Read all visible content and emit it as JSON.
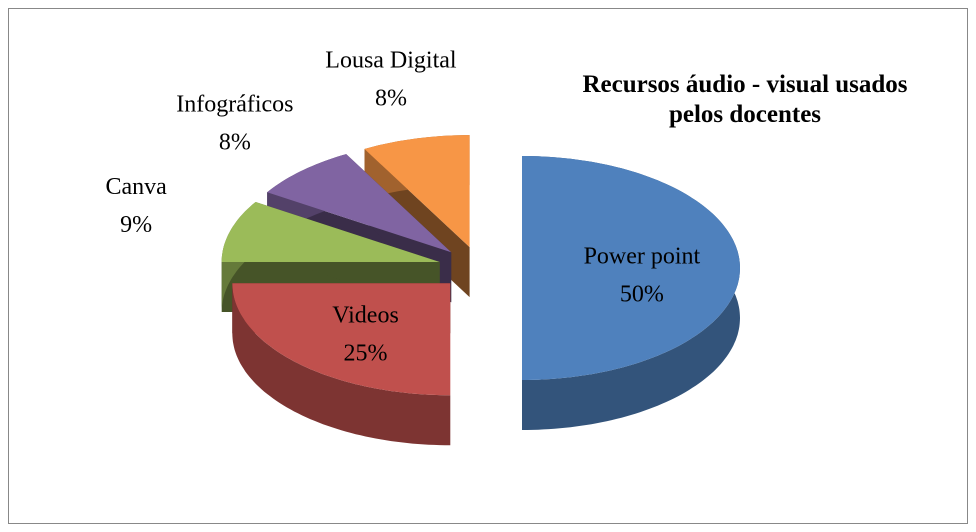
{
  "chart_data": {
    "type": "pie3d",
    "title": "Recursos áudio - visual usados pelos docentes",
    "categories": [
      "Power point",
      "Videos",
      "Canva",
      "Infográficos",
      "Lousa Digital"
    ],
    "values": [
      50,
      25,
      9,
      8,
      8
    ],
    "value_labels": [
      "50%",
      "25%",
      "9%",
      "8%",
      "8%"
    ],
    "colors": [
      "#4f81bd",
      "#c0504d",
      "#9bbb59",
      "#8064a2",
      "#f79646"
    ]
  }
}
